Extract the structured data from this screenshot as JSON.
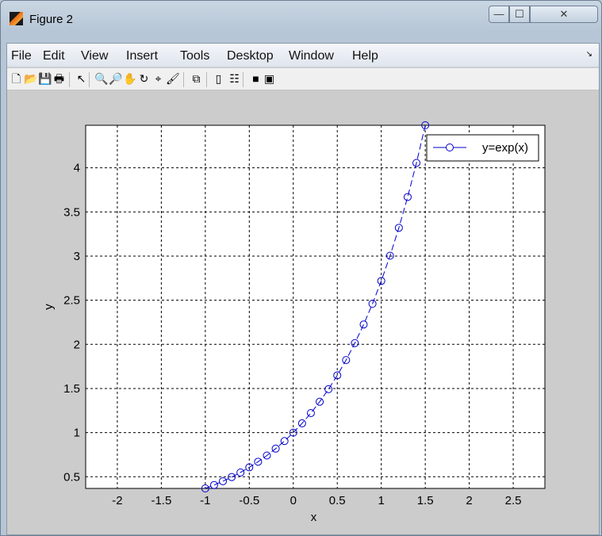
{
  "window": {
    "title": "Figure 2",
    "minimize": "—",
    "maximize": "☐",
    "close": "✕"
  },
  "menu": [
    "File",
    "Edit",
    "View",
    "Insert",
    "Tools",
    "Desktop",
    "Window",
    "Help"
  ],
  "toolbar": [
    {
      "name": "new-figure-icon",
      "glyph": "🗋"
    },
    {
      "name": "open-file-icon",
      "glyph": "📂"
    },
    {
      "name": "save-icon",
      "glyph": "💾"
    },
    {
      "name": "print-icon",
      "glyph": "🖶"
    },
    {
      "name": "edit-plot-arrow-icon",
      "glyph": "↖"
    },
    {
      "name": "zoom-in-icon",
      "glyph": "🔍"
    },
    {
      "name": "zoom-out-icon",
      "glyph": "🔎"
    },
    {
      "name": "pan-hand-icon",
      "glyph": "✋"
    },
    {
      "name": "rotate-3d-icon",
      "glyph": "↻"
    },
    {
      "name": "data-cursor-icon",
      "glyph": "⌖"
    },
    {
      "name": "brush-icon",
      "glyph": "🖌"
    },
    {
      "name": "link-plot-icon",
      "glyph": "⧉"
    },
    {
      "name": "colorbar-icon",
      "glyph": "▯"
    },
    {
      "name": "legend-icon",
      "glyph": "☷"
    },
    {
      "name": "hide-plot-tools-icon",
      "glyph": "■"
    },
    {
      "name": "show-plot-tools-icon",
      "glyph": "▣"
    }
  ],
  "chart_data": {
    "type": "line",
    "xlabel": "x",
    "ylabel": "y",
    "xlim": [
      -2.36,
      2.86
    ],
    "ylim": [
      0.3679,
      4.4817
    ],
    "xticks": [
      -2,
      -1.5,
      -1,
      -0.5,
      0,
      0.5,
      1,
      1.5,
      2,
      2.5
    ],
    "yticks": [
      0.5,
      1,
      1.5,
      2,
      2.5,
      3,
      3.5,
      4
    ],
    "grid": true,
    "legend_position": "top-right",
    "series": [
      {
        "name": "y=exp(x)",
        "color": "#0000cc",
        "line": "dashed",
        "marker": "circle",
        "x": [
          -1,
          -0.9,
          -0.8,
          -0.7,
          -0.6,
          -0.5,
          -0.4,
          -0.3,
          -0.2,
          -0.1,
          0,
          0.1,
          0.2,
          0.3,
          0.4,
          0.5,
          0.6,
          0.7,
          0.8,
          0.9,
          1,
          1.1,
          1.2,
          1.3,
          1.4,
          1.5
        ],
        "y": [
          0.3679,
          0.4066,
          0.4493,
          0.4966,
          0.5488,
          0.6065,
          0.6703,
          0.7408,
          0.8187,
          0.9048,
          1,
          1.1052,
          1.2214,
          1.3499,
          1.4918,
          1.6487,
          1.8221,
          2.0138,
          2.2255,
          2.4596,
          2.7183,
          3.0042,
          3.3201,
          3.6693,
          4.0552,
          4.4817
        ]
      }
    ]
  }
}
